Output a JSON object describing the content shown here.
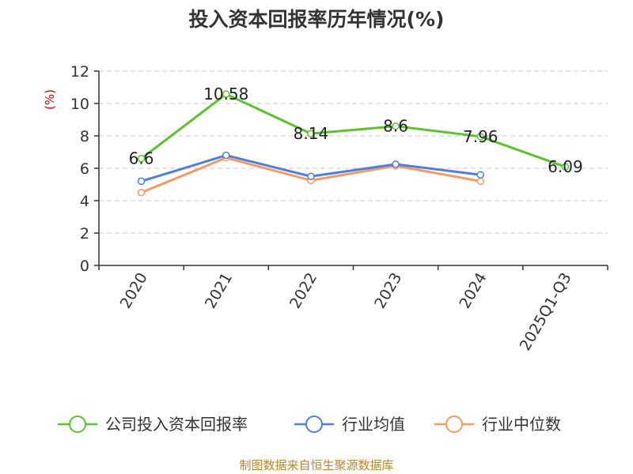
{
  "chart_data": {
    "type": "line",
    "title": "投入资本回报率历年情况(%)",
    "ylabel": "(%)",
    "categories": [
      "2020",
      "2021",
      "2022",
      "2023",
      "2024",
      "2025Q1-Q3"
    ],
    "ylim": [
      0,
      12
    ],
    "yticks": [
      0,
      2,
      4,
      6,
      8,
      10,
      12
    ],
    "grid": "horizontal dashed",
    "legend_position": "bottom",
    "series": [
      {
        "name": "公司投入资本回报率",
        "color": "#5cc22f",
        "values": [
          6.6,
          10.58,
          8.14,
          8.6,
          7.96,
          6.09
        ],
        "labels": [
          "6.6",
          "10.58",
          "8.14",
          "8.6",
          "7.96",
          "6.09"
        ]
      },
      {
        "name": "行业均值",
        "color": "#4f7fdc",
        "values": [
          5.2,
          6.8,
          5.5,
          6.25,
          5.6,
          null
        ]
      },
      {
        "name": "行业中位数",
        "color": "#f59a63",
        "values": [
          4.5,
          6.65,
          5.25,
          6.15,
          5.2,
          null
        ]
      }
    ]
  },
  "source": "制图数据来自恒生聚源数据库"
}
